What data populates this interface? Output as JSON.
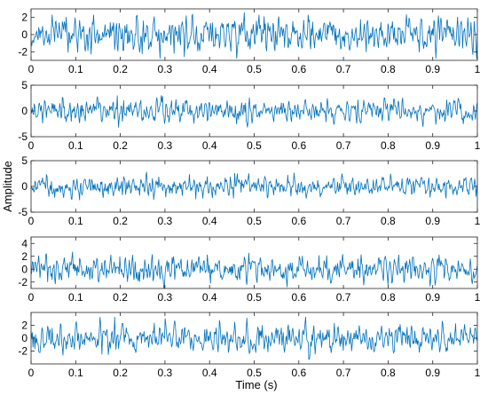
{
  "chart_data": {
    "type": "line",
    "xlabel": "Time (s)",
    "ylabel": "Amplitude",
    "line_color": "#0072BD",
    "grid": false,
    "x_range": [
      0,
      1
    ],
    "x_ticks": [
      0,
      0.1,
      0.2,
      0.3,
      0.4,
      0.5,
      0.6,
      0.7,
      0.8,
      0.9,
      1
    ],
    "x_tick_labels": [
      "0",
      "0.1",
      "0.2",
      "0.3",
      "0.4",
      "0.5",
      "0.6",
      "0.7",
      "0.8",
      "0.9",
      "1"
    ],
    "panels": [
      {
        "ylim": [
          -3,
          3
        ],
        "yticks": [
          -2,
          0,
          2
        ],
        "ytick_labels": [
          "-2",
          "0",
          "2"
        ],
        "signal_sd": 0.95,
        "peak": 2.8
      },
      {
        "ylim": [
          -5,
          5
        ],
        "yticks": [
          -5,
          0,
          5
        ],
        "ytick_labels": [
          "-5",
          "0",
          "5"
        ],
        "signal_sd": 1.0,
        "peak": 3.2
      },
      {
        "ylim": [
          -5,
          5
        ],
        "yticks": [
          -5,
          0,
          5
        ],
        "ytick_labels": [
          "-5",
          "0",
          "5"
        ],
        "signal_sd": 0.9,
        "peak": 4.0
      },
      {
        "ylim": [
          -3,
          5
        ],
        "yticks": [
          -2,
          0,
          2,
          4
        ],
        "ytick_labels": [
          "-2",
          "0",
          "2",
          "4"
        ],
        "signal_sd": 0.95,
        "peak": 3.2
      },
      {
        "ylim": [
          -4,
          4
        ],
        "yticks": [
          -2,
          0,
          2
        ],
        "ytick_labels": [
          "-2",
          "0",
          "2"
        ],
        "signal_sd": 1.0,
        "peak": 3.3
      }
    ]
  }
}
